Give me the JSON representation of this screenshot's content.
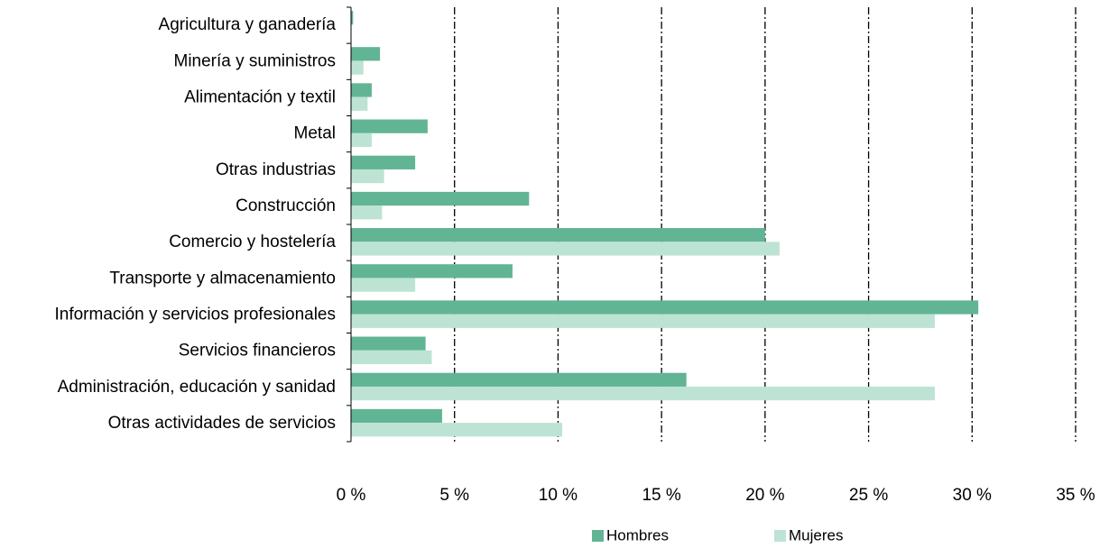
{
  "chart_data": {
    "type": "bar",
    "orientation": "horizontal",
    "categories": [
      "Agricultura y ganadería",
      "Minería y suministros",
      "Alimentación y textil",
      "Metal",
      "Otras industrias",
      "Construcción",
      "Comercio y hostelería",
      "Transporte y almacenamiento",
      "Información y servicios profesionales",
      "Servicios financieros",
      "Administración, educación y sanidad",
      "Otras actividades de servicios"
    ],
    "series": [
      {
        "name": "Hombres",
        "color": "#62b594",
        "values": [
          0.1,
          1.4,
          1.0,
          3.7,
          3.1,
          8.6,
          20.0,
          7.8,
          30.3,
          3.6,
          16.2,
          4.4
        ]
      },
      {
        "name": "Mujeres",
        "color": "#bde3d4",
        "values": [
          0,
          0.6,
          0.8,
          1.0,
          1.6,
          1.5,
          20.7,
          3.1,
          28.2,
          3.9,
          28.2,
          10.2
        ]
      }
    ],
    "xlim": [
      0,
      35
    ],
    "xticks": [
      {
        "value": 0,
        "label": "0 %"
      },
      {
        "value": 5,
        "label": "5 %"
      },
      {
        "value": 10,
        "label": "10 %"
      },
      {
        "value": 15,
        "label": "15 %"
      },
      {
        "value": 20,
        "label": "20 %"
      },
      {
        "value": 25,
        "label": "25 %"
      },
      {
        "value": 30,
        "label": "30 %"
      },
      {
        "value": 35,
        "label": "35 %"
      }
    ],
    "grid": true,
    "legend": "bottom"
  }
}
